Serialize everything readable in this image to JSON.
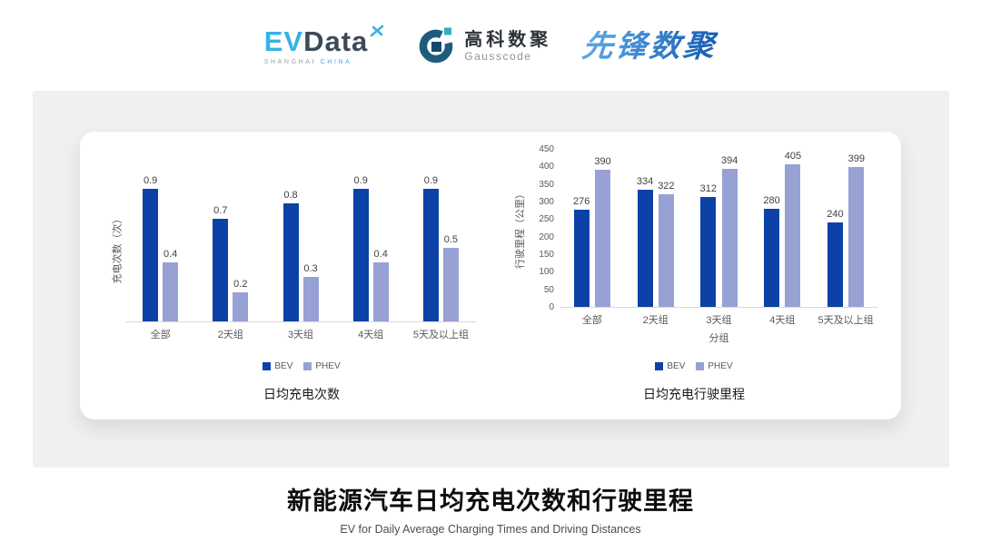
{
  "header": {
    "evdata": {
      "ev": "EV",
      "data": "Data",
      "sub_left": "SHANGHAI",
      "sub_right": "CHINA"
    },
    "gausscode": {
      "cn": "高科数聚",
      "en": "Gausscode"
    },
    "xianfeng": {
      "text": "先锋数聚"
    }
  },
  "colors": {
    "bev": "#0c42a8",
    "phev": "#97a1d4",
    "evdata_blue": "#35b3e3",
    "evdata_dark": "#3c4a58",
    "gauss_arc": "#1d5c7d",
    "gauss_square_dark": "#16486e",
    "gauss_square_teal": "#2fafc6",
    "axis_text": "#595959",
    "baseline": "#d9d9d9",
    "panel_bg": "#f0f0f0"
  },
  "chart_data": [
    {
      "type": "bar",
      "title": "日均充电次数",
      "ylabel": "充电次数（次）",
      "xlabel": "",
      "categories": [
        "全部",
        "2天组",
        "3天组",
        "4天组",
        "5天及以上组"
      ],
      "series": [
        {
          "name": "BEV",
          "color": "#0c42a8",
          "values": [
            0.9,
            0.7,
            0.8,
            0.9,
            0.9
          ]
        },
        {
          "name": "PHEV",
          "color": "#97a1d4",
          "values": [
            0.4,
            0.2,
            0.3,
            0.4,
            0.5
          ]
        }
      ],
      "ylim": [
        0,
        1.0
      ],
      "yticks": [],
      "grid": false,
      "legend_position": "bottom",
      "data_labels": true
    },
    {
      "type": "bar",
      "title": "日均充电行驶里程",
      "ylabel": "行驶里程（公里）",
      "xlabel": "分组",
      "categories": [
        "全部",
        "2天组",
        "3天组",
        "4天组",
        "5天及以上组"
      ],
      "series": [
        {
          "name": "BEV",
          "color": "#0c42a8",
          "values": [
            276,
            334,
            312,
            280,
            240
          ]
        },
        {
          "name": "PHEV",
          "color": "#97a1d4",
          "values": [
            390,
            322,
            394,
            405,
            399
          ]
        }
      ],
      "ylim": [
        0,
        450
      ],
      "yticks": [
        0,
        50,
        100,
        150,
        200,
        250,
        300,
        350,
        400,
        450
      ],
      "grid": false,
      "legend_position": "bottom",
      "data_labels": true
    }
  ],
  "footer": {
    "title": "新能源汽车日均充电次数和行驶里程",
    "subtitle": "EV for Daily Average Charging Times and Driving Distances"
  }
}
